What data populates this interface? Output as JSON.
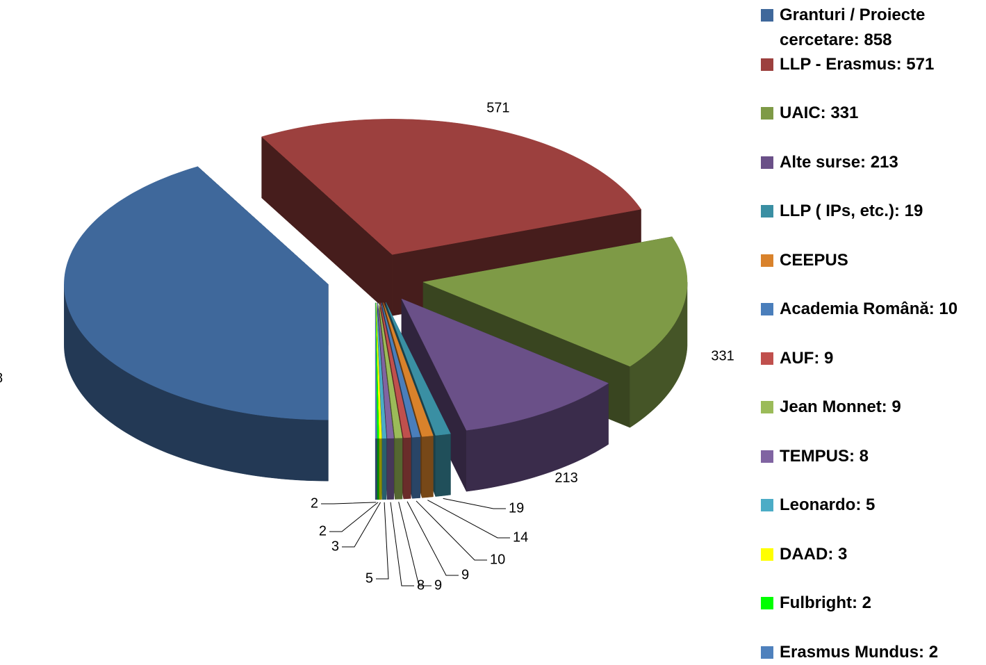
{
  "chart_data": {
    "type": "pie",
    "categories": [
      "Granturi / Proiecte cercetare: 858",
      "LLP - Erasmus: 571",
      "UAIC: 331",
      "Alte surse: 213",
      "LLP ( IPs, etc.):  19",
      "CEEPUS",
      "Academia Română: 10",
      "AUF: 9",
      "Jean Monnet: 9",
      "TEMPUS: 8",
      "Leonardo: 5",
      "DAAD: 3",
      "Fulbright: 2",
      "Erasmus Mundus: 2"
    ],
    "values": [
      858,
      571,
      331,
      213,
      19,
      14,
      10,
      9,
      9,
      8,
      5,
      3,
      2,
      2
    ],
    "colors": [
      "#3f689b",
      "#9c403e",
      "#7e9a46",
      "#6a5088",
      "#3a8fa3",
      "#d9822b",
      "#4a7ebb",
      "#c0504d",
      "#9bbb59",
      "#8064a2",
      "#4bacc6",
      "#ffff00",
      "#00ff00",
      "#4f81bd"
    ],
    "legend": "right"
  }
}
